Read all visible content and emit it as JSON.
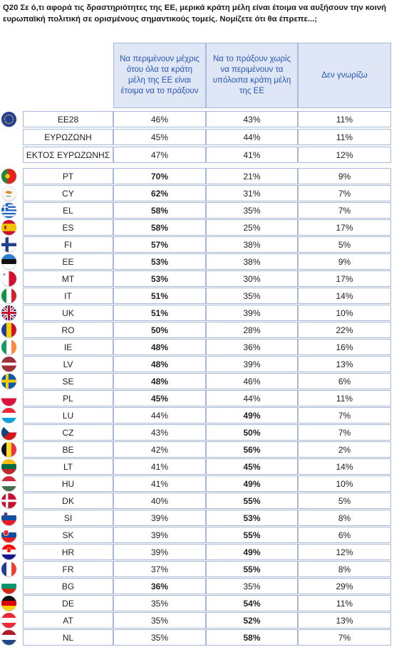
{
  "question": "Q20 Σε ό,τι αφορά τις δραστηριότητες της ΕΕ, μερικά κράτη μέλη είναι έτοιμα να αυξήσουν την κοινή ευρωπαϊκή πολιτική σε ορισμένους σημαντικούς τομείς. Νομίζετε ότι θα έπρεπε...;",
  "chart_data": {
    "type": "table",
    "columns": [
      "Να περιμένουν μέχρις ότου όλα τα κράτη μέλη της ΕΕ είναι έτοιμα να το πράξουν",
      "Να το πράξουν χωρίς να περιμένουν τα υπόλοιπα κράτη μέλη της ΕΕ",
      "Δεν γνωρίζω"
    ],
    "rows": [
      {
        "label": "EE28",
        "values": [
          "46%",
          "43%",
          "11%"
        ],
        "bold": [
          false,
          false,
          false
        ],
        "flag": "eu"
      },
      {
        "label": "ΕΥΡΩΖΩΝΗ",
        "values": [
          "45%",
          "44%",
          "11%"
        ],
        "bold": [
          false,
          false,
          false
        ],
        "flag": ""
      },
      {
        "label": "ΕΚΤΟΣ ΕΥΡΩΖΩΝΗΣ",
        "values": [
          "47%",
          "41%",
          "12%"
        ],
        "bold": [
          false,
          false,
          false
        ],
        "flag": ""
      },
      {
        "label": "PT",
        "values": [
          "70%",
          "21%",
          "9%"
        ],
        "bold": [
          true,
          false,
          false
        ],
        "flag": "pt"
      },
      {
        "label": "CY",
        "values": [
          "62%",
          "31%",
          "7%"
        ],
        "bold": [
          true,
          false,
          false
        ],
        "flag": "cy"
      },
      {
        "label": "EL",
        "values": [
          "58%",
          "35%",
          "7%"
        ],
        "bold": [
          true,
          false,
          false
        ],
        "flag": "el"
      },
      {
        "label": "ES",
        "values": [
          "58%",
          "25%",
          "17%"
        ],
        "bold": [
          true,
          false,
          false
        ],
        "flag": "es"
      },
      {
        "label": "FI",
        "values": [
          "57%",
          "38%",
          "5%"
        ],
        "bold": [
          true,
          false,
          false
        ],
        "flag": "fi"
      },
      {
        "label": "EE",
        "values": [
          "53%",
          "38%",
          "9%"
        ],
        "bold": [
          true,
          false,
          false
        ],
        "flag": "ee"
      },
      {
        "label": "MT",
        "values": [
          "53%",
          "30%",
          "17%"
        ],
        "bold": [
          true,
          false,
          false
        ],
        "flag": "mt"
      },
      {
        "label": "IT",
        "values": [
          "51%",
          "35%",
          "14%"
        ],
        "bold": [
          true,
          false,
          false
        ],
        "flag": "it"
      },
      {
        "label": "UK",
        "values": [
          "51%",
          "39%",
          "10%"
        ],
        "bold": [
          true,
          false,
          false
        ],
        "flag": "uk"
      },
      {
        "label": "RO",
        "values": [
          "50%",
          "28%",
          "22%"
        ],
        "bold": [
          true,
          false,
          false
        ],
        "flag": "ro"
      },
      {
        "label": "IE",
        "values": [
          "48%",
          "36%",
          "16%"
        ],
        "bold": [
          true,
          false,
          false
        ],
        "flag": "ie"
      },
      {
        "label": "LV",
        "values": [
          "48%",
          "39%",
          "13%"
        ],
        "bold": [
          true,
          false,
          false
        ],
        "flag": "lv"
      },
      {
        "label": "SE",
        "values": [
          "48%",
          "46%",
          "6%"
        ],
        "bold": [
          true,
          false,
          false
        ],
        "flag": "se"
      },
      {
        "label": "PL",
        "values": [
          "45%",
          "44%",
          "11%"
        ],
        "bold": [
          true,
          false,
          false
        ],
        "flag": "pl"
      },
      {
        "label": "LU",
        "values": [
          "44%",
          "49%",
          "7%"
        ],
        "bold": [
          false,
          true,
          false
        ],
        "flag": "lu"
      },
      {
        "label": "CZ",
        "values": [
          "43%",
          "50%",
          "7%"
        ],
        "bold": [
          false,
          true,
          false
        ],
        "flag": "cz"
      },
      {
        "label": "BE",
        "values": [
          "42%",
          "56%",
          "2%"
        ],
        "bold": [
          false,
          true,
          false
        ],
        "flag": "be"
      },
      {
        "label": "LT",
        "values": [
          "41%",
          "45%",
          "14%"
        ],
        "bold": [
          false,
          true,
          false
        ],
        "flag": "lt"
      },
      {
        "label": "HU",
        "values": [
          "41%",
          "49%",
          "10%"
        ],
        "bold": [
          false,
          true,
          false
        ],
        "flag": "hu"
      },
      {
        "label": "DK",
        "values": [
          "40%",
          "55%",
          "5%"
        ],
        "bold": [
          false,
          true,
          false
        ],
        "flag": "dk"
      },
      {
        "label": "SI",
        "values": [
          "39%",
          "53%",
          "8%"
        ],
        "bold": [
          false,
          true,
          false
        ],
        "flag": "si"
      },
      {
        "label": "SK",
        "values": [
          "39%",
          "55%",
          "6%"
        ],
        "bold": [
          false,
          true,
          false
        ],
        "flag": "sk"
      },
      {
        "label": "HR",
        "values": [
          "39%",
          "49%",
          "12%"
        ],
        "bold": [
          false,
          true,
          false
        ],
        "flag": "hr"
      },
      {
        "label": "FR",
        "values": [
          "37%",
          "55%",
          "8%"
        ],
        "bold": [
          false,
          true,
          false
        ],
        "flag": "fr"
      },
      {
        "label": "BG",
        "values": [
          "36%",
          "35%",
          "29%"
        ],
        "bold": [
          true,
          false,
          false
        ],
        "flag": "bg"
      },
      {
        "label": "DE",
        "values": [
          "35%",
          "54%",
          "11%"
        ],
        "bold": [
          false,
          true,
          false
        ],
        "flag": "de"
      },
      {
        "label": "AT",
        "values": [
          "35%",
          "52%",
          "13%"
        ],
        "bold": [
          false,
          true,
          false
        ],
        "flag": "at"
      },
      {
        "label": "NL",
        "values": [
          "35%",
          "58%",
          "7%"
        ],
        "bold": [
          false,
          true,
          false
        ],
        "flag": "nl"
      }
    ]
  }
}
